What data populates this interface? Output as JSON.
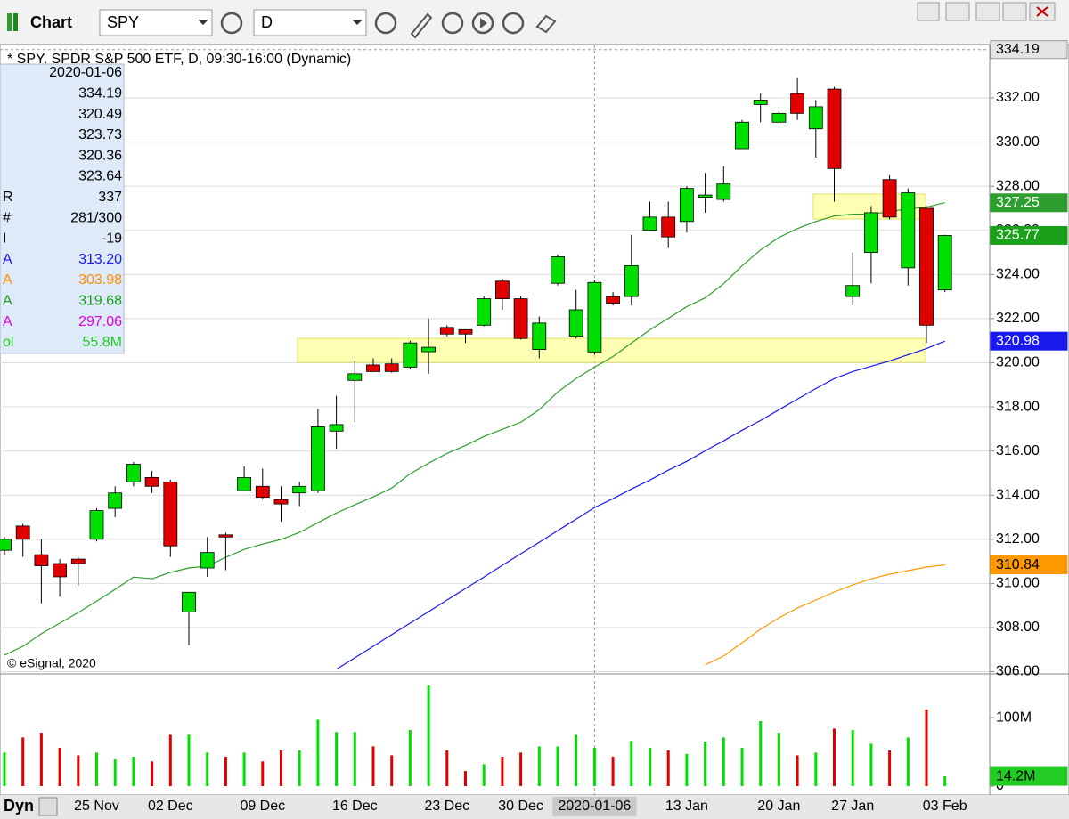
{
  "toolbar": {
    "title": "Chart",
    "symbol": "SPY",
    "interval": "D"
  },
  "chart_data": {
    "type": "candlestick",
    "title": "* SPY, SPDR S&P 500 ETF, D, 09:30-16:00 (Dynamic)",
    "watermark": "© eSignal, 2020",
    "categories": [
      null,
      null,
      null,
      null,
      null,
      "25 Nov",
      null,
      null,
      null,
      "02 Dec",
      null,
      null,
      null,
      null,
      "09 Dec",
      null,
      null,
      null,
      null,
      "16 Dec",
      null,
      null,
      null,
      null,
      "23 Dec",
      null,
      null,
      null,
      "30 Dec",
      null,
      null,
      null,
      "2020-01-06",
      null,
      null,
      null,
      null,
      "13 Jan",
      null,
      null,
      null,
      null,
      "20 Jan",
      null,
      null,
      null,
      "27 Jan",
      null,
      null,
      null,
      null,
      "03 Feb"
    ],
    "open": [
      311.5,
      312.6,
      311.3,
      310.9,
      311.1,
      312.0,
      313.4,
      314.6,
      314.8,
      314.6,
      308.7,
      310.7,
      312.2,
      314.2,
      314.4,
      313.8,
      314.1,
      314.2,
      316.9,
      319.2,
      319.9,
      319.95,
      319.8,
      320.5,
      321.6,
      321.5,
      321.7,
      323.7,
      322.9,
      320.6,
      323.6,
      321.2,
      320.49,
      323.0,
      323.0,
      326.0,
      326.6,
      326.4,
      327.5,
      327.4,
      329.7,
      331.7,
      330.9,
      332.2,
      330.6,
      332.4,
      323.0,
      325.0,
      328.3,
      324.3,
      327.0,
      323.3
    ],
    "high": [
      312.1,
      312.7,
      312.0,
      311.1,
      311.2,
      313.4,
      314.4,
      315.5,
      315.1,
      314.7,
      309.6,
      312.1,
      312.3,
      315.3,
      315.2,
      314.4,
      314.6,
      317.9,
      318.5,
      320.1,
      320.2,
      320.2,
      321.0,
      322.0,
      321.7,
      321.5,
      323.0,
      323.8,
      323.0,
      322.1,
      324.9,
      323.3,
      323.73,
      323.2,
      325.8,
      327.3,
      327.3,
      328.0,
      328.6,
      328.9,
      331.0,
      332.2,
      331.6,
      332.9,
      331.9,
      332.5,
      325.0,
      327.1,
      328.5,
      327.9,
      327.1,
      325.8
    ],
    "low": [
      311.3,
      311.2,
      309.1,
      309.4,
      309.9,
      311.9,
      313.0,
      314.4,
      314.1,
      311.2,
      307.2,
      310.3,
      310.6,
      314.2,
      313.8,
      312.8,
      313.5,
      314.1,
      316.1,
      317.3,
      319.6,
      319.55,
      319.7,
      319.5,
      321.2,
      320.9,
      321.65,
      322.4,
      321.05,
      320.2,
      323.5,
      321.1,
      320.36,
      322.6,
      322.6,
      326.0,
      325.2,
      325.9,
      326.8,
      327.3,
      329.7,
      330.9,
      330.8,
      331.0,
      329.3,
      327.3,
      322.6,
      323.6,
      326.5,
      323.5,
      320.9,
      323.2
    ],
    "close": [
      312.0,
      312.0,
      310.8,
      310.3,
      310.9,
      313.3,
      314.1,
      315.4,
      314.4,
      311.7,
      309.6,
      311.4,
      312.1,
      314.8,
      313.9,
      313.6,
      314.4,
      317.1,
      317.2,
      319.5,
      319.6,
      319.6,
      320.9,
      320.7,
      321.3,
      321.3,
      322.9,
      322.9,
      321.1,
      321.8,
      324.8,
      322.4,
      323.64,
      322.7,
      324.4,
      326.6,
      325.7,
      327.9,
      327.6,
      328.1,
      330.9,
      331.9,
      331.3,
      331.3,
      331.6,
      328.8,
      323.5,
      326.8,
      326.6,
      327.7,
      321.7,
      325.77
    ],
    "up_color": "#00e000",
    "down_color": "#e00000",
    "ylim": [
      305.9,
      334.38
    ],
    "yticks": [
      {
        "value": 306,
        "label": "306.00"
      },
      {
        "value": 308,
        "label": "308.00"
      },
      {
        "value": 310,
        "label": "310.00"
      },
      {
        "value": 312,
        "label": "312.00"
      },
      {
        "value": 314,
        "label": "314.00"
      },
      {
        "value": 316,
        "label": "316.00"
      },
      {
        "value": 318,
        "label": "318.00"
      },
      {
        "value": 320,
        "label": "320.00"
      },
      {
        "value": 322,
        "label": "322.00"
      },
      {
        "value": 324,
        "label": "324.00"
      },
      {
        "value": 326,
        "label": "326.00"
      },
      {
        "value": 328,
        "label": "328.00"
      },
      {
        "value": 330,
        "label": "330.00"
      },
      {
        "value": 332,
        "label": "332.00"
      }
    ],
    "grid": true,
    "cursor": {
      "price": 334.19,
      "date": "2020-01-06"
    },
    "series": [
      {
        "color": "#2e9e2e",
        "values": [
          306.75,
          307.15,
          307.72,
          308.2,
          308.68,
          309.2,
          309.73,
          310.29,
          310.21,
          310.5,
          310.7,
          310.78,
          311.18,
          311.54,
          311.78,
          311.99,
          312.31,
          312.75,
          313.19,
          313.56,
          313.92,
          314.32,
          314.97,
          315.45,
          315.89,
          316.25,
          316.66,
          316.98,
          317.3,
          317.87,
          318.67,
          319.28,
          319.8,
          320.28,
          320.89,
          321.49,
          322.01,
          322.54,
          322.94,
          323.58,
          324.39,
          325.11,
          325.68,
          326.08,
          326.4,
          326.65,
          326.73,
          326.73,
          326.85,
          326.97,
          327.05,
          327.25
        ]
      },
      {
        "color": "#1a1aee",
        "values": [
          null,
          null,
          null,
          null,
          null,
          null,
          null,
          null,
          null,
          null,
          null,
          null,
          null,
          null,
          null,
          null,
          null,
          null,
          306.11,
          306.63,
          307.15,
          307.68,
          308.2,
          308.72,
          309.25,
          309.77,
          310.29,
          310.82,
          311.34,
          311.86,
          312.39,
          312.91,
          313.44,
          313.84,
          314.28,
          314.68,
          315.13,
          315.53,
          316.01,
          316.46,
          316.94,
          317.38,
          317.87,
          318.35,
          318.83,
          319.28,
          319.6,
          319.84,
          320.08,
          320.36,
          320.64,
          320.98
        ]
      },
      {
        "color": "#ff9900",
        "values": [
          null,
          null,
          null,
          null,
          null,
          null,
          null,
          null,
          null,
          null,
          null,
          null,
          null,
          null,
          null,
          null,
          null,
          null,
          null,
          null,
          null,
          null,
          null,
          null,
          null,
          null,
          null,
          null,
          null,
          null,
          null,
          null,
          null,
          null,
          null,
          null,
          null,
          null,
          306.31,
          306.71,
          307.31,
          307.92,
          308.44,
          308.88,
          309.25,
          309.61,
          309.93,
          310.21,
          310.42,
          310.58,
          310.74,
          310.84
        ]
      }
    ],
    "volume": {
      "values": [
        49000000,
        71000000,
        78000000,
        56000000,
        45000000,
        49000000,
        39000000,
        43000000,
        36000000,
        75000000,
        75000000,
        49000000,
        43000000,
        49000000,
        36000000,
        52000000,
        52000000,
        97000000,
        79000000,
        79000000,
        58000000,
        45000000,
        82000000,
        147000000,
        52000000,
        22000000,
        32000000,
        43000000,
        49000000,
        58000000,
        58000000,
        75000000,
        56000000,
        43000000,
        66000000,
        56000000,
        52000000,
        47000000,
        65000000,
        71000000,
        56000000,
        95000000,
        78000000,
        45000000,
        49000000,
        84000000,
        82000000,
        62000000,
        52000000,
        71000000,
        112000000,
        14200000
      ],
      "value_labels": [
        null,
        null,
        null,
        null,
        null,
        null,
        null,
        null,
        null,
        null,
        null,
        null,
        null,
        null,
        null,
        null,
        null,
        null,
        null,
        null,
        null,
        null,
        null,
        null,
        null,
        null,
        null,
        null,
        null,
        null,
        null,
        null,
        null,
        null,
        null,
        null,
        null,
        null,
        null,
        null,
        null,
        null,
        null,
        null,
        null,
        null,
        null,
        null,
        null,
        null,
        null,
        "14.2M"
      ],
      "ylim": [
        0,
        160000000
      ],
      "yticks": [
        0,
        {
          "value": 100000000,
          "label": "100M"
        }
      ]
    }
  },
  "data_window": {
    "rows": [
      {
        "value": "2020-01-06"
      },
      {
        "value": "334.19"
      },
      {
        "value": "320.49"
      },
      {
        "value": "323.73"
      },
      {
        "value": "320.36"
      },
      {
        "value": "323.64"
      },
      {
        "label": "R",
        "value": "337"
      },
      {
        "label": "#",
        "value": "281/300"
      },
      {
        "label": "I",
        "value": "-19"
      },
      {
        "label": "A",
        "value": "313.20",
        "color": "#1a1aee"
      },
      {
        "label": "A",
        "value": "303.98",
        "color": "#ff8c00"
      },
      {
        "label": "A",
        "value": "319.68",
        "color": "#1a9e1a"
      },
      {
        "label": "A",
        "value": "297.06",
        "color": "#e000e0"
      },
      {
        "label": "ol",
        "value": "55.8M",
        "color": "#22cc22"
      }
    ]
  },
  "status": {
    "mode": "Dyn"
  }
}
